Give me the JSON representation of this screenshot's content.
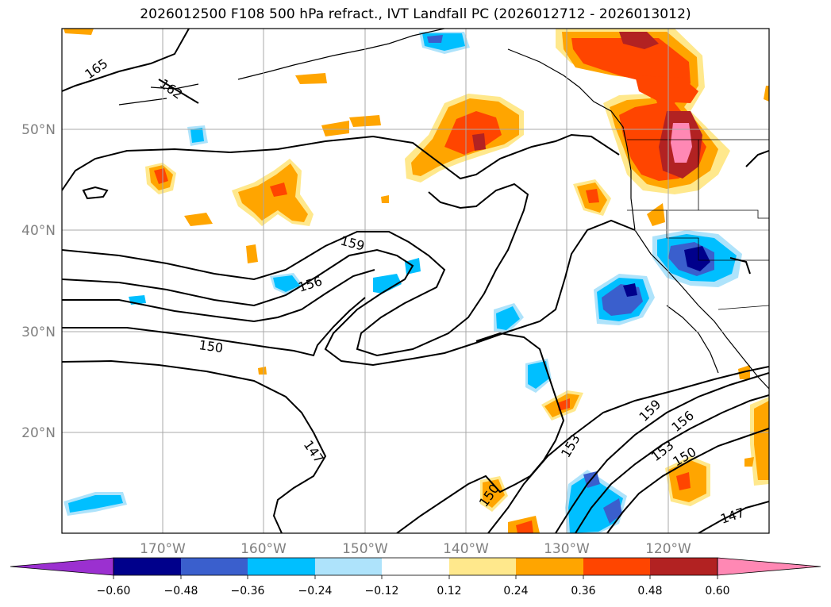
{
  "title": "2026012500 F108 500 hPa refract., IVT Landfall PC (2026012712 - 2026013012)",
  "lat_labels": [
    "50°N",
    "40°N",
    "30°N",
    "20°N"
  ],
  "lon_labels": [
    "170°W",
    "160°W",
    "150°W",
    "140°W",
    "130°W",
    "120°W"
  ],
  "contour_labels": [
    "165",
    "162",
    "159",
    "156",
    "150",
    "147",
    "153",
    "159",
    "156",
    "153",
    "150",
    "150",
    "147"
  ],
  "colorbar": {
    "ticks": [
      "−0.60",
      "−0.48",
      "−0.36",
      "−0.24",
      "−0.12",
      "0.12",
      "0.24",
      "0.36",
      "0.48",
      "0.60"
    ],
    "colors": {
      "under": "#9b30d0",
      "c1": "#00008b",
      "c2": "#3a5fcd",
      "c3": "#00bfff",
      "c4": "#aee3fb",
      "c5": "#ffffff",
      "c6": "#ffe88c",
      "c7": "#ffa500",
      "c8": "#ff4500",
      "c9": "#b22222",
      "over": "#ff88b4"
    }
  }
}
